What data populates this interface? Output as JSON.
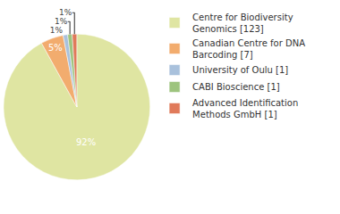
{
  "chart_data": {
    "type": "pie",
    "categories": [
      "Centre for Biodiversity Genomics [123]",
      "Canadian Centre for DNA Barcoding [7]",
      "University of Oulu [1]",
      "CABI Bioscience [1]",
      "Advanced Identification Methods GmbH [1]"
    ],
    "values": [
      92,
      5,
      1,
      1,
      1
    ],
    "value_labels": [
      "92%",
      "5%",
      "1%",
      "1%",
      "1%"
    ],
    "colors": [
      "#dfe5a2",
      "#f2ac6e",
      "#a9c1dc",
      "#9dc47e",
      "#e07a5a"
    ],
    "data_labels": true,
    "legend": "top-right"
  }
}
